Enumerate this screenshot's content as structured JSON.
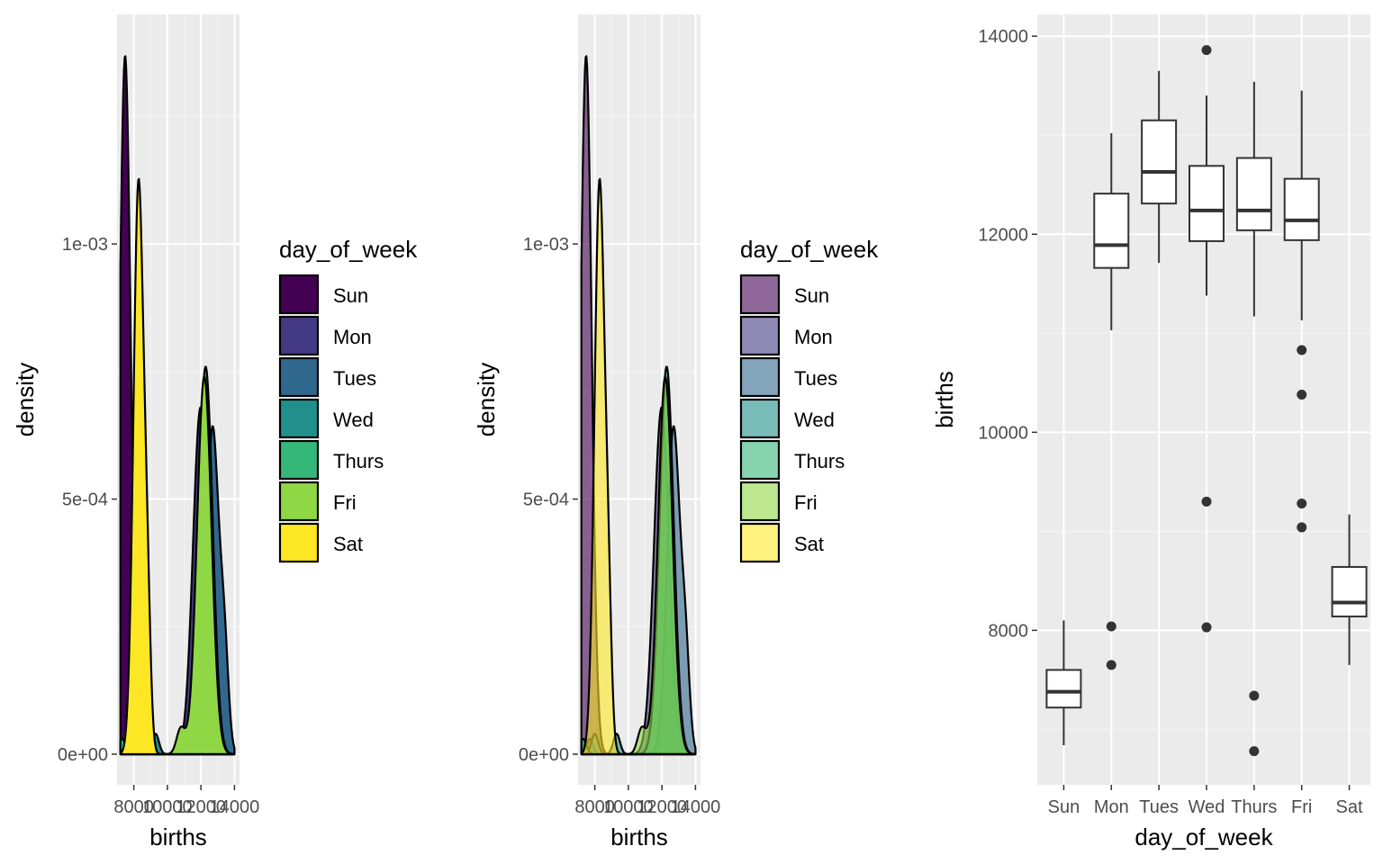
{
  "chart_data": [
    {
      "type": "area",
      "subtype": "density",
      "xlabel": "births",
      "ylabel": "density",
      "xticks": [
        "8000",
        "10000",
        "12000",
        "14000"
      ],
      "yticks": [
        "0e+00",
        "5e-04",
        "1e-03"
      ],
      "xlim": [
        7000,
        14300
      ],
      "ylim": [
        -6e-05,
        0.00145
      ],
      "grid": true,
      "fill_alpha": 1.0,
      "legend": {
        "title": "day_of_week",
        "position": "right",
        "entries": [
          "Sun",
          "Mon",
          "Tues",
          "Wed",
          "Thurs",
          "Fri",
          "Sat"
        ],
        "colors": [
          "#440154",
          "#443A83",
          "#31688E",
          "#21908C",
          "#35B779",
          "#8FD744",
          "#FDE725"
        ]
      },
      "series": [
        {
          "name": "Sun",
          "color": "#440154",
          "peaks": [
            [
              7480,
              0.00137,
              330
            ]
          ]
        },
        {
          "name": "Mon",
          "color": "#443A83",
          "peaks": [
            [
              11980,
              0.00068,
              450
            ],
            [
              7700,
              3e-05,
              200
            ]
          ]
        },
        {
          "name": "Tues",
          "color": "#31688E",
          "peaks": [
            [
              12690,
              0.00064,
              380
            ],
            [
              13400,
              0.00018,
              250
            ]
          ]
        },
        {
          "name": "Wed",
          "color": "#21908C",
          "peaks": [
            [
              12260,
              0.00072,
              420
            ],
            [
              8000,
              4e-05,
              200
            ],
            [
              9300,
              4e-05,
              200
            ]
          ]
        },
        {
          "name": "Thurs",
          "color": "#35B779",
          "peaks": [
            [
              12280,
              0.00076,
              420
            ],
            [
              7300,
              3e-05,
              200
            ]
          ]
        },
        {
          "name": "Fri",
          "color": "#8FD744",
          "peaks": [
            [
              12200,
              0.00074,
              430
            ],
            [
              10800,
              5e-05,
              250
            ]
          ]
        },
        {
          "name": "Sat",
          "color": "#FDE725",
          "peaks": [
            [
              8280,
              0.00112,
              300
            ],
            [
              8800,
              0.00024,
              200
            ]
          ]
        }
      ]
    },
    {
      "type": "area",
      "subtype": "density",
      "xlabel": "births",
      "ylabel": "density",
      "xticks": [
        "8000",
        "10000",
        "12000",
        "14000"
      ],
      "yticks": [
        "0e+00",
        "5e-04",
        "1e-03"
      ],
      "xlim": [
        7000,
        14300
      ],
      "ylim": [
        -6e-05,
        0.00145
      ],
      "grid": true,
      "fill_alpha": 0.6,
      "legend": {
        "title": "day_of_week",
        "position": "right",
        "entries": [
          "Sun",
          "Mon",
          "Tues",
          "Wed",
          "Thurs",
          "Fri",
          "Sat"
        ],
        "colors": [
          "#440154",
          "#443A83",
          "#31688E",
          "#21908C",
          "#35B779",
          "#8FD744",
          "#FDE725"
        ]
      },
      "series": [
        {
          "name": "Sun",
          "color": "#440154",
          "peaks": [
            [
              7480,
              0.00137,
              330
            ]
          ]
        },
        {
          "name": "Mon",
          "color": "#443A83",
          "peaks": [
            [
              11980,
              0.00068,
              450
            ],
            [
              7700,
              3e-05,
              200
            ]
          ]
        },
        {
          "name": "Tues",
          "color": "#31688E",
          "peaks": [
            [
              12690,
              0.00064,
              380
            ],
            [
              13400,
              0.00018,
              250
            ]
          ]
        },
        {
          "name": "Wed",
          "color": "#21908C",
          "peaks": [
            [
              12260,
              0.00072,
              420
            ],
            [
              8000,
              4e-05,
              200
            ],
            [
              9300,
              4e-05,
              200
            ]
          ]
        },
        {
          "name": "Thurs",
          "color": "#35B779",
          "peaks": [
            [
              12280,
              0.00076,
              420
            ],
            [
              7300,
              3e-05,
              200
            ]
          ]
        },
        {
          "name": "Fri",
          "color": "#8FD744",
          "peaks": [
            [
              12200,
              0.00074,
              430
            ],
            [
              10800,
              5e-05,
              250
            ]
          ]
        },
        {
          "name": "Sat",
          "color": "#FDE725",
          "peaks": [
            [
              8280,
              0.00112,
              300
            ],
            [
              8800,
              0.00024,
              200
            ]
          ]
        }
      ]
    },
    {
      "type": "box",
      "xlabel": "day_of_week",
      "ylabel": "births",
      "categories": [
        "Sun",
        "Mon",
        "Tues",
        "Wed",
        "Thurs",
        "Fri",
        "Sat"
      ],
      "yticks": [
        "8000",
        "10000",
        "12000",
        "14000"
      ],
      "ylim": [
        6440,
        14220
      ],
      "grid": true,
      "boxes": [
        {
          "name": "Sun",
          "low": 6840,
          "q1": 7220,
          "median": 7380,
          "q3": 7600,
          "high": 8100,
          "outliers": []
        },
        {
          "name": "Mon",
          "low": 11030,
          "q1": 11660,
          "median": 11890,
          "q3": 12410,
          "high": 13020,
          "outliers": [
            8040,
            7650
          ]
        },
        {
          "name": "Tues",
          "low": 11710,
          "q1": 12310,
          "median": 12630,
          "q3": 13150,
          "high": 13650,
          "outliers": []
        },
        {
          "name": "Wed",
          "low": 11380,
          "q1": 11930,
          "median": 12240,
          "q3": 12690,
          "high": 13400,
          "outliers": [
            13860,
            9300,
            8030
          ]
        },
        {
          "name": "Thurs",
          "low": 11170,
          "q1": 12040,
          "median": 12240,
          "q3": 12770,
          "high": 13540,
          "outliers": [
            7340,
            6780
          ]
        },
        {
          "name": "Fri",
          "low": 11130,
          "q1": 11940,
          "median": 12140,
          "q3": 12560,
          "high": 13450,
          "outliers": [
            10830,
            10380,
            9280,
            9040
          ]
        },
        {
          "name": "Sat",
          "low": 7650,
          "q1": 8140,
          "median": 8280,
          "q3": 8640,
          "high": 9170,
          "outliers": []
        }
      ]
    }
  ]
}
